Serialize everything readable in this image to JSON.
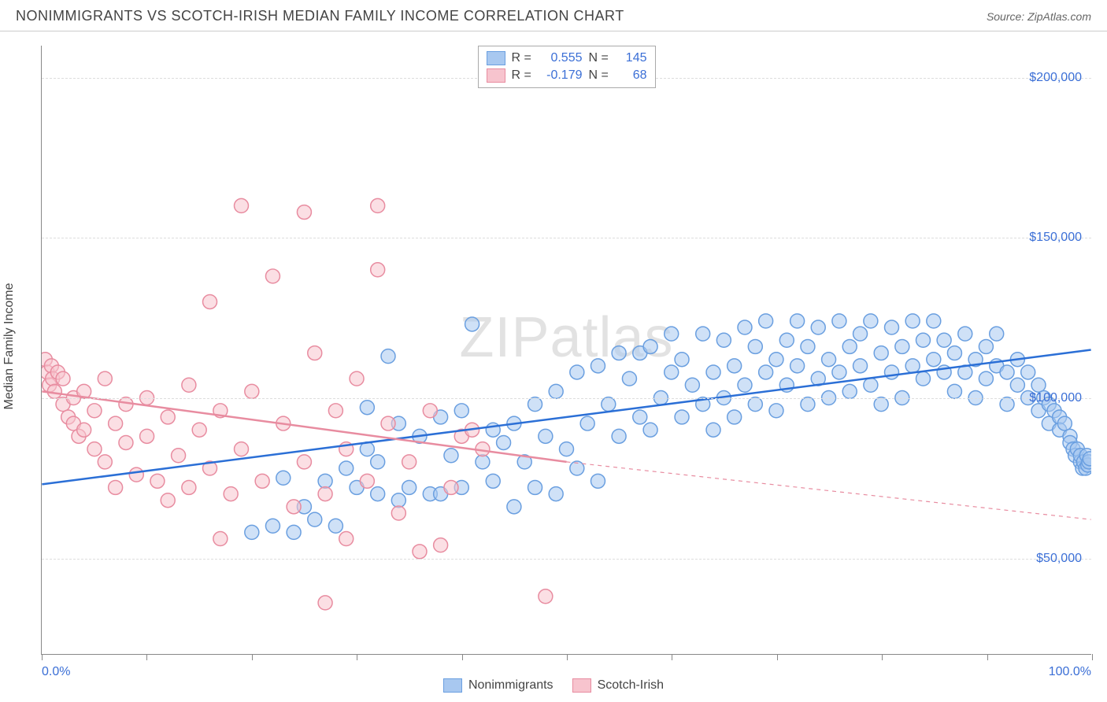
{
  "title": "NONIMMIGRANTS VS SCOTCH-IRISH MEDIAN FAMILY INCOME CORRELATION CHART",
  "source": "Source: ZipAtlas.com",
  "watermark": "ZIPatlas",
  "y_axis_label": "Median Family Income",
  "chart": {
    "type": "scatter",
    "background_color": "#ffffff",
    "grid_color": "#dddddd",
    "axis_color": "#888888",
    "xlim": [
      0,
      100
    ],
    "ylim": [
      20000,
      210000
    ],
    "x_ticks": [
      0,
      10,
      20,
      30,
      40,
      50,
      60,
      70,
      80,
      90,
      100
    ],
    "x_tick_labels": {
      "0": "0.0%",
      "100": "100.0%"
    },
    "y_ticks": [
      50000,
      100000,
      150000,
      200000
    ],
    "y_tick_labels": {
      "50000": "$50,000",
      "100000": "$100,000",
      "150000": "$150,000",
      "200000": "$200,000"
    },
    "marker_radius": 9,
    "marker_opacity": 0.55,
    "line_width": 2.5,
    "series": [
      {
        "id": "nonimmigrants",
        "label": "Nonimmigrants",
        "color_fill": "#a8c8f0",
        "color_stroke": "#6a9fe0",
        "line_color": "#2b6fd6",
        "r_label": "R =",
        "r_value": "0.555",
        "n_label": "N =",
        "n_value": "145",
        "trend": {
          "x1": 0,
          "y1": 73000,
          "x2": 100,
          "y2": 115000,
          "style": "solid"
        },
        "points": [
          [
            20,
            58000
          ],
          [
            22,
            60000
          ],
          [
            23,
            75000
          ],
          [
            24,
            58000
          ],
          [
            25,
            66000
          ],
          [
            26,
            62000
          ],
          [
            27,
            74000
          ],
          [
            28,
            60000
          ],
          [
            29,
            78000
          ],
          [
            30,
            72000
          ],
          [
            31,
            84000
          ],
          [
            31,
            97000
          ],
          [
            32,
            70000
          ],
          [
            32,
            80000
          ],
          [
            33,
            113000
          ],
          [
            34,
            68000
          ],
          [
            34,
            92000
          ],
          [
            35,
            72000
          ],
          [
            36,
            88000
          ],
          [
            37,
            70000
          ],
          [
            38,
            70000
          ],
          [
            38,
            94000
          ],
          [
            39,
            82000
          ],
          [
            40,
            72000
          ],
          [
            40,
            96000
          ],
          [
            41,
            123000
          ],
          [
            42,
            80000
          ],
          [
            43,
            74000
          ],
          [
            43,
            90000
          ],
          [
            44,
            86000
          ],
          [
            45,
            66000
          ],
          [
            45,
            92000
          ],
          [
            46,
            80000
          ],
          [
            47,
            72000
          ],
          [
            47,
            98000
          ],
          [
            48,
            88000
          ],
          [
            49,
            70000
          ],
          [
            49,
            102000
          ],
          [
            50,
            84000
          ],
          [
            51,
            78000
          ],
          [
            51,
            108000
          ],
          [
            52,
            92000
          ],
          [
            53,
            74000
          ],
          [
            53,
            110000
          ],
          [
            54,
            98000
          ],
          [
            55,
            88000
          ],
          [
            55,
            114000
          ],
          [
            56,
            106000
          ],
          [
            57,
            114000
          ],
          [
            57,
            94000
          ],
          [
            58,
            90000
          ],
          [
            58,
            116000
          ],
          [
            59,
            100000
          ],
          [
            60,
            108000
          ],
          [
            60,
            120000
          ],
          [
            61,
            94000
          ],
          [
            61,
            112000
          ],
          [
            62,
            104000
          ],
          [
            63,
            98000
          ],
          [
            63,
            120000
          ],
          [
            64,
            108000
          ],
          [
            64,
            90000
          ],
          [
            65,
            100000
          ],
          [
            65,
            118000
          ],
          [
            66,
            110000
          ],
          [
            66,
            94000
          ],
          [
            67,
            122000
          ],
          [
            67,
            104000
          ],
          [
            68,
            116000
          ],
          [
            68,
            98000
          ],
          [
            69,
            108000
          ],
          [
            69,
            124000
          ],
          [
            70,
            112000
          ],
          [
            70,
            96000
          ],
          [
            71,
            118000
          ],
          [
            71,
            104000
          ],
          [
            72,
            110000
          ],
          [
            72,
            124000
          ],
          [
            73,
            98000
          ],
          [
            73,
            116000
          ],
          [
            74,
            106000
          ],
          [
            74,
            122000
          ],
          [
            75,
            112000
          ],
          [
            75,
            100000
          ],
          [
            76,
            124000
          ],
          [
            76,
            108000
          ],
          [
            77,
            116000
          ],
          [
            77,
            102000
          ],
          [
            78,
            120000
          ],
          [
            78,
            110000
          ],
          [
            79,
            104000
          ],
          [
            79,
            124000
          ],
          [
            80,
            114000
          ],
          [
            80,
            98000
          ],
          [
            81,
            122000
          ],
          [
            81,
            108000
          ],
          [
            82,
            116000
          ],
          [
            82,
            100000
          ],
          [
            83,
            124000
          ],
          [
            83,
            110000
          ],
          [
            84,
            118000
          ],
          [
            84,
            106000
          ],
          [
            85,
            112000
          ],
          [
            85,
            124000
          ],
          [
            86,
            108000
          ],
          [
            86,
            118000
          ],
          [
            87,
            114000
          ],
          [
            87,
            102000
          ],
          [
            88,
            120000
          ],
          [
            88,
            108000
          ],
          [
            89,
            112000
          ],
          [
            89,
            100000
          ],
          [
            90,
            116000
          ],
          [
            90,
            106000
          ],
          [
            91,
            110000
          ],
          [
            91,
            120000
          ],
          [
            92,
            108000
          ],
          [
            92,
            98000
          ],
          [
            93,
            112000
          ],
          [
            93,
            104000
          ],
          [
            94,
            100000
          ],
          [
            94,
            108000
          ],
          [
            95,
            104000
          ],
          [
            95,
            96000
          ],
          [
            95.5,
            100000
          ],
          [
            96,
            98000
          ],
          [
            96,
            92000
          ],
          [
            96.5,
            96000
          ],
          [
            97,
            94000
          ],
          [
            97,
            90000
          ],
          [
            97.5,
            92000
          ],
          [
            98,
            88000
          ],
          [
            98,
            86000
          ],
          [
            98.3,
            84000
          ],
          [
            98.5,
            82000
          ],
          [
            98.7,
            84000
          ],
          [
            99,
            80000
          ],
          [
            99,
            82000
          ],
          [
            99.2,
            78000
          ],
          [
            99.3,
            80000
          ],
          [
            99.5,
            78000
          ],
          [
            99.6,
            82000
          ],
          [
            99.7,
            79000
          ],
          [
            99.8,
            80000
          ],
          [
            99.9,
            81000
          ]
        ]
      },
      {
        "id": "scotch_irish",
        "label": "Scotch-Irish",
        "color_fill": "#f7c4ce",
        "color_stroke": "#e88ca0",
        "line_color": "#e88ca0",
        "r_label": "R =",
        "r_value": "-0.179",
        "n_label": "N =",
        "n_value": "68",
        "trend": {
          "x1": 0,
          "y1": 102000,
          "x2": 50,
          "y2": 80000,
          "style": "solid"
        },
        "trend_ext": {
          "x1": 50,
          "y1": 80000,
          "x2": 100,
          "y2": 62000,
          "style": "dashed"
        },
        "points": [
          [
            0.3,
            112000
          ],
          [
            0.5,
            108000
          ],
          [
            0.7,
            104000
          ],
          [
            0.9,
            110000
          ],
          [
            1,
            106000
          ],
          [
            1.2,
            102000
          ],
          [
            1.5,
            108000
          ],
          [
            2,
            98000
          ],
          [
            2,
            106000
          ],
          [
            2.5,
            94000
          ],
          [
            3,
            100000
          ],
          [
            3,
            92000
          ],
          [
            3.5,
            88000
          ],
          [
            4,
            102000
          ],
          [
            4,
            90000
          ],
          [
            5,
            84000
          ],
          [
            5,
            96000
          ],
          [
            6,
            106000
          ],
          [
            6,
            80000
          ],
          [
            7,
            92000
          ],
          [
            7,
            72000
          ],
          [
            8,
            98000
          ],
          [
            8,
            86000
          ],
          [
            9,
            76000
          ],
          [
            10,
            88000
          ],
          [
            10,
            100000
          ],
          [
            11,
            74000
          ],
          [
            12,
            94000
          ],
          [
            12,
            68000
          ],
          [
            13,
            82000
          ],
          [
            14,
            104000
          ],
          [
            14,
            72000
          ],
          [
            15,
            90000
          ],
          [
            16,
            130000
          ],
          [
            16,
            78000
          ],
          [
            17,
            56000
          ],
          [
            17,
            96000
          ],
          [
            18,
            70000
          ],
          [
            19,
            160000
          ],
          [
            19,
            84000
          ],
          [
            20,
            102000
          ],
          [
            21,
            74000
          ],
          [
            22,
            138000
          ],
          [
            23,
            92000
          ],
          [
            24,
            66000
          ],
          [
            25,
            158000
          ],
          [
            25,
            80000
          ],
          [
            26,
            114000
          ],
          [
            27,
            70000
          ],
          [
            27,
            36000
          ],
          [
            28,
            96000
          ],
          [
            29,
            84000
          ],
          [
            29,
            56000
          ],
          [
            30,
            106000
          ],
          [
            31,
            74000
          ],
          [
            32,
            140000
          ],
          [
            32,
            160000
          ],
          [
            33,
            92000
          ],
          [
            34,
            64000
          ],
          [
            35,
            80000
          ],
          [
            36,
            52000
          ],
          [
            37,
            96000
          ],
          [
            38,
            54000
          ],
          [
            39,
            72000
          ],
          [
            40,
            88000
          ],
          [
            41,
            90000
          ],
          [
            42,
            84000
          ],
          [
            48,
            38000
          ]
        ]
      }
    ]
  },
  "bottom_legend": [
    {
      "label": "Nonimmigrants",
      "fill": "#a8c8f0",
      "stroke": "#6a9fe0"
    },
    {
      "label": "Scotch-Irish",
      "fill": "#f7c4ce",
      "stroke": "#e88ca0"
    }
  ]
}
